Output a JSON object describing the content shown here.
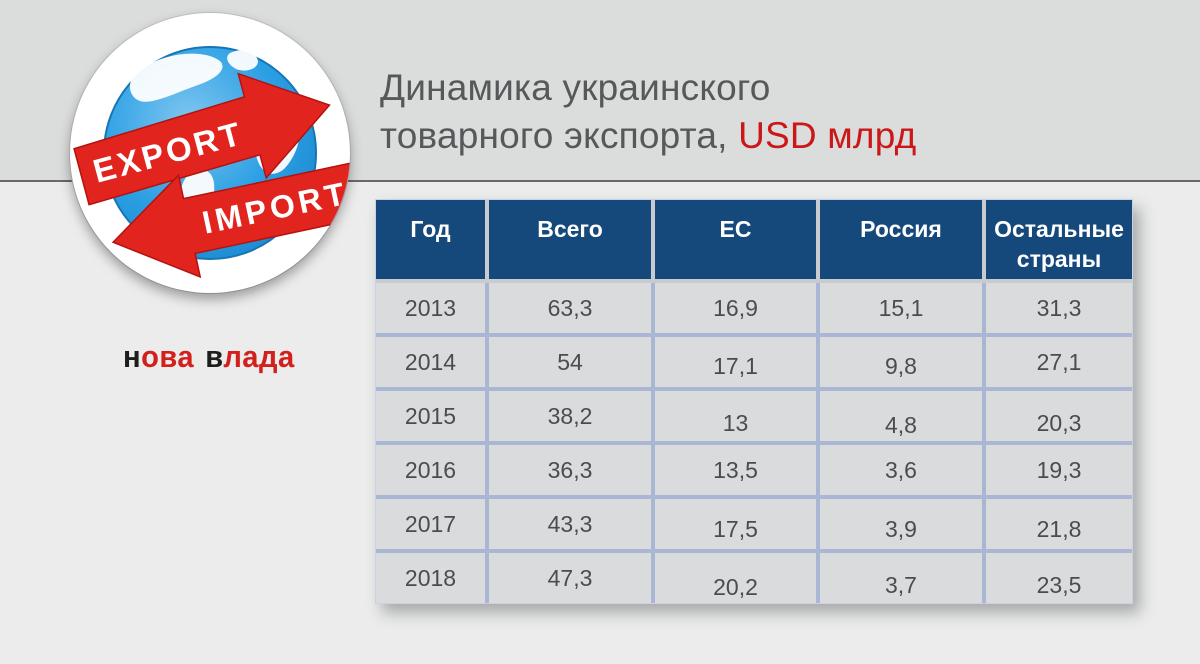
{
  "title": {
    "line1": "Динамика украинского",
    "line2": "товарного экспорта,",
    "line2_highlight": "USD млрд"
  },
  "logo": {
    "export_label": "EXPORT",
    "import_label": "IMPORT"
  },
  "brand": {
    "seg1": "н",
    "seg2": "ова",
    "seg3": "в",
    "seg4": "лада"
  },
  "colors": {
    "header_bg": "#15497b",
    "accent_red": "#cb1718",
    "brand_red": "#d2201c",
    "cell_bg": "#dadbdc",
    "grid_line": "#a9b6d4",
    "arrow_red": "#e2241f",
    "globe_blue": "#2b9fe4"
  },
  "chart_data": {
    "type": "table",
    "title": "Динамика украинского товарного экспорта, USD млрд",
    "columns": [
      "Год",
      "Всего",
      "ЕС",
      "Россия",
      "Остальные страны"
    ],
    "rows": [
      [
        "2013",
        "63,3",
        "16,9",
        "15,1",
        "31,3"
      ],
      [
        "2014",
        "54",
        "17,1",
        "9,8",
        "27,1"
      ],
      [
        "2015",
        "38,2",
        "13",
        "4,8",
        "20,3"
      ],
      [
        "2016",
        "36,3",
        "13,5",
        "3,6",
        "19,3"
      ],
      [
        "2017",
        "43,3",
        "17,5",
        "3,9",
        "21,8"
      ],
      [
        "2018",
        "47,3",
        "20,2",
        "3,7",
        "23,5"
      ]
    ]
  }
}
